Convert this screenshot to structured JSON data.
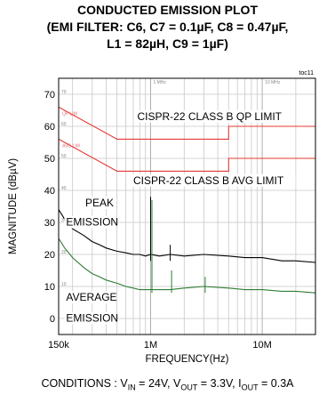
{
  "chart_data": {
    "type": "line",
    "title_lines": [
      "CONDUCTED EMISSION PLOT",
      "(EMI FILTER: C6, C7 = 0.1µF, C8 = 0.47µF,",
      "L1 = 82µH, C9 = 1µF)"
    ],
    "figure_code": "toc11",
    "xlabel": "FREQUENCY(Hz)",
    "ylabel": "MAGNITUDE (dBµV)",
    "x_scale": "log",
    "xlim_hz": [
      150000,
      30000000
    ],
    "ylim": [
      -5,
      75
    ],
    "x_ticks": [
      {
        "value": 150000,
        "label": "150k"
      },
      {
        "value": 1000000,
        "label": "1M"
      },
      {
        "value": 10000000,
        "label": "10M"
      }
    ],
    "y_ticks": [
      0,
      10,
      20,
      30,
      40,
      50,
      60,
      70
    ],
    "inner_grid_labels": [
      "1 MHz",
      "10 MHz"
    ],
    "inner_y_labels": [
      "70",
      "60",
      "50",
      "40",
      "30",
      "20",
      "10"
    ],
    "grid": true,
    "series": [
      {
        "name": "PEAK EMISSION",
        "color": "#000000",
        "x": [
          150000,
          170000,
          200000,
          250000,
          300000,
          350000,
          400000,
          500000,
          600000,
          700000,
          800000,
          900000,
          1000000,
          1200000,
          1500000,
          2000000,
          3000000,
          5000000,
          7000000,
          10000000,
          15000000,
          20000000,
          30000000
        ],
        "y": [
          34,
          31,
          28,
          26,
          24,
          23,
          22,
          21,
          20.5,
          20,
          20,
          19.5,
          20,
          19.5,
          20,
          19.5,
          20,
          19.5,
          19,
          19,
          18,
          18,
          17.5
        ]
      },
      {
        "name": "AVERAGE EMISSION",
        "color": "#2e7d32",
        "x": [
          150000,
          170000,
          200000,
          250000,
          300000,
          350000,
          400000,
          500000,
          600000,
          700000,
          800000,
          900000,
          1000000,
          1200000,
          1500000,
          2000000,
          3000000,
          5000000,
          7000000,
          10000000,
          15000000,
          20000000,
          30000000
        ],
        "y": [
          25,
          22,
          19,
          16,
          14,
          13,
          12,
          11,
          10,
          9.5,
          9,
          9,
          9,
          9,
          9,
          9.5,
          10,
          9.5,
          9,
          9,
          8.5,
          8.5,
          8
        ]
      },
      {
        "name": "CISPR-22 CLASS B QP LIMIT",
        "color": "#e53935",
        "x": [
          150000,
          500000,
          500000,
          5000000,
          5000000,
          30000000
        ],
        "y": [
          66,
          56,
          56,
          56,
          60,
          60
        ]
      },
      {
        "name": "CISPR-22 CLASS B AVG LIMIT",
        "color": "#e53935",
        "x": [
          150000,
          500000,
          500000,
          5000000,
          5000000,
          30000000
        ],
        "y": [
          56,
          46,
          46,
          46,
          50,
          50
        ]
      }
    ],
    "spikes": [
      {
        "x": 1000000,
        "peak": 38,
        "average": 37
      },
      {
        "x": 1500000,
        "peak": 23,
        "average": 15
      },
      {
        "x": 3000000,
        "peak": 18,
        "average": 13
      }
    ],
    "annotations": [
      {
        "text": "CISPR-22 CLASS B QP LIMIT"
      },
      {
        "text": "CISPR-22 CLASS B AVG LIMIT"
      },
      {
        "text": "PEAK"
      },
      {
        "text": "EMISSION"
      },
      {
        "text": "AVERAGE"
      },
      {
        "text": "EMISSION"
      }
    ],
    "faint_limit_labels": [
      "QP LIM",
      "AVG LIM"
    ],
    "conditions": {
      "prefix": "CONDITIONS : V",
      "vin_sub": "IN",
      "vin_val": " = 24V, V",
      "vout_sub": "OUT",
      "vout_val": " = 3.3V, I",
      "iout_sub": "OUT",
      "iout_val": " = 0.3A"
    }
  }
}
